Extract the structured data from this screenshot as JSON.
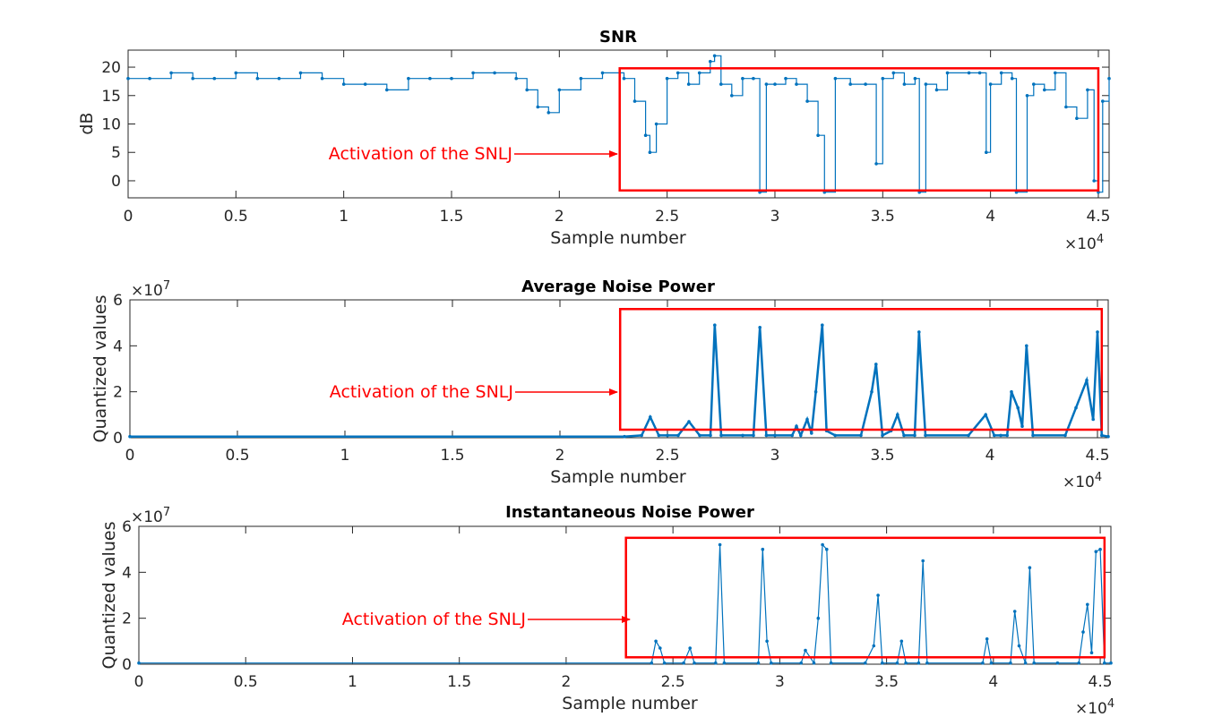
{
  "chart_data": [
    {
      "type": "line",
      "title": "SNR",
      "xlabel": "Sample number",
      "ylabel": "dB",
      "x_multiplier": "×10",
      "x_multiplier_exp": "4",
      "y_multiplier": "",
      "y_multiplier_exp": "",
      "xlim": [
        0,
        4.55
      ],
      "ylim": [
        -3,
        23
      ],
      "xticks": [
        "0",
        "0.5",
        "1",
        "1.5",
        "2",
        "2.5",
        "3",
        "3.5",
        "4",
        "4.5"
      ],
      "yticks": [
        "20",
        "15",
        "10",
        "5",
        "0"
      ],
      "ytick_values": [
        20,
        15,
        10,
        5,
        0
      ],
      "annotation": "Activation of the SNLJ",
      "highlight_region": {
        "x": [
          2.28,
          4.5
        ],
        "y": [
          -1.7,
          19.8
        ]
      },
      "series": [
        {
          "name": "SNR",
          "color": "#0072BD",
          "x": [
            0,
            0.1,
            0.2,
            0.3,
            0.4,
            0.5,
            0.6,
            0.7,
            0.8,
            0.9,
            1.0,
            1.1,
            1.2,
            1.3,
            1.4,
            1.5,
            1.6,
            1.7,
            1.8,
            1.85,
            1.9,
            1.95,
            2.0,
            2.1,
            2.2,
            2.3,
            2.35,
            2.4,
            2.42,
            2.45,
            2.5,
            2.55,
            2.6,
            2.65,
            2.7,
            2.72,
            2.75,
            2.8,
            2.85,
            2.9,
            2.93,
            2.96,
            3.0,
            3.05,
            3.1,
            3.15,
            3.2,
            3.23,
            3.28,
            3.35,
            3.42,
            3.47,
            3.5,
            3.55,
            3.6,
            3.65,
            3.67,
            3.7,
            3.75,
            3.8,
            3.9,
            3.95,
            3.98,
            4.0,
            4.05,
            4.1,
            4.12,
            4.17,
            4.2,
            4.25,
            4.3,
            4.35,
            4.4,
            4.45,
            4.48,
            4.5,
            4.52,
            4.55
          ],
          "values": [
            18,
            18,
            19,
            18,
            18,
            19,
            18,
            18,
            19,
            18,
            17,
            17,
            16,
            18,
            18,
            18,
            19,
            19,
            18,
            16,
            13,
            12,
            16,
            18,
            19,
            18,
            14,
            8,
            5,
            10,
            18,
            19,
            17,
            19,
            21,
            22,
            17,
            15,
            18,
            18,
            -2,
            17,
            17,
            18,
            17,
            14,
            8,
            -2,
            18,
            17,
            17,
            3,
            18,
            19,
            17,
            18,
            -2,
            17,
            16,
            19,
            19,
            19,
            5,
            17,
            19,
            18,
            -2,
            15,
            17,
            16,
            19,
            13,
            11,
            16,
            0,
            -2,
            14,
            18
          ]
        }
      ]
    },
    {
      "type": "line",
      "title": "Average Noise Power",
      "xlabel": "Sample number",
      "ylabel": "Quantized values",
      "x_multiplier": "×10",
      "x_multiplier_exp": "4",
      "y_multiplier": "×10",
      "y_multiplier_exp": "7",
      "xlim": [
        0,
        4.55
      ],
      "ylim": [
        0,
        6
      ],
      "xticks": [
        "0",
        "0.5",
        "1",
        "1.5",
        "2",
        "2.5",
        "3",
        "3.5",
        "4",
        "4.5"
      ],
      "yticks": [
        "6",
        "4",
        "2",
        "0"
      ],
      "ytick_values": [
        6,
        4,
        2,
        0
      ],
      "annotation": "Activation of the SNLJ",
      "highlight_region": {
        "x": [
          2.28,
          4.52
        ],
        "y": [
          0.35,
          5.6
        ]
      },
      "series": [
        {
          "name": "Average Noise Power",
          "color": "#0072BD",
          "x": [
            0,
            2.3,
            2.38,
            2.42,
            2.46,
            2.5,
            2.55,
            2.6,
            2.65,
            2.7,
            2.72,
            2.75,
            2.85,
            2.9,
            2.93,
            2.96,
            3.0,
            3.08,
            3.1,
            3.12,
            3.15,
            3.17,
            3.19,
            3.22,
            3.24,
            3.28,
            3.4,
            3.45,
            3.47,
            3.5,
            3.54,
            3.57,
            3.6,
            3.65,
            3.67,
            3.7,
            3.9,
            3.98,
            4.02,
            4.05,
            4.08,
            4.1,
            4.13,
            4.15,
            4.17,
            4.2,
            4.35,
            4.4,
            4.45,
            4.48,
            4.5,
            4.52,
            4.55
          ],
          "values": [
            0.05,
            0.05,
            0.1,
            0.9,
            0.1,
            0.1,
            0.1,
            0.7,
            0.1,
            0.1,
            4.9,
            0.1,
            0.1,
            0.1,
            4.8,
            0.1,
            0.1,
            0.1,
            0.5,
            0.1,
            0.8,
            0.2,
            2.0,
            4.9,
            0.3,
            0.1,
            0.1,
            2.0,
            3.2,
            0.1,
            0.3,
            1.0,
            0.1,
            0.1,
            4.6,
            0.1,
            0.1,
            1.0,
            0.1,
            0.1,
            0.1,
            2.0,
            1.3,
            0.5,
            4.0,
            0.1,
            0.1,
            1.3,
            2.5,
            0.8,
            4.6,
            0.1,
            0.05
          ]
        }
      ]
    },
    {
      "type": "line",
      "title": "Instantaneous Noise Power",
      "xlabel": "Sample number",
      "ylabel": "Quantized values",
      "x_multiplier": "×10",
      "x_multiplier_exp": "4",
      "y_multiplier": "×10",
      "y_multiplier_exp": "7",
      "xlim": [
        0,
        4.55
      ],
      "ylim": [
        0,
        6
      ],
      "xticks": [
        "0",
        "0.5",
        "1",
        "1.5",
        "2",
        "2.5",
        "3",
        "3.5",
        "4",
        "4.5"
      ],
      "yticks": [
        "6",
        "4",
        "2",
        "0"
      ],
      "ytick_values": [
        6,
        4,
        2,
        0
      ],
      "annotation": "Activation of the SNLJ",
      "highlight_region": {
        "x": [
          2.28,
          4.52
        ],
        "y": [
          0.3,
          5.5
        ]
      },
      "series": [
        {
          "name": "Instantaneous Noise Power",
          "color": "#0072BD",
          "x": [
            0,
            2.4,
            2.42,
            2.44,
            2.46,
            2.55,
            2.58,
            2.6,
            2.7,
            2.72,
            2.74,
            2.9,
            2.92,
            2.94,
            2.96,
            3.1,
            3.12,
            3.16,
            3.18,
            3.2,
            3.22,
            3.24,
            3.4,
            3.44,
            3.46,
            3.48,
            3.55,
            3.57,
            3.59,
            3.65,
            3.67,
            3.69,
            3.95,
            3.97,
            3.99,
            4.08,
            4.1,
            4.12,
            4.15,
            4.17,
            4.19,
            4.3,
            4.4,
            4.42,
            4.44,
            4.46,
            4.48,
            4.5,
            4.52,
            4.55
          ],
          "values": [
            0.05,
            0.05,
            1.0,
            0.7,
            0.05,
            0.05,
            0.7,
            0.05,
            0.05,
            5.2,
            0.05,
            0.05,
            5.0,
            1.0,
            0.05,
            0.05,
            0.6,
            0.05,
            2.0,
            5.2,
            5.0,
            0.05,
            0.05,
            0.8,
            3.0,
            0.05,
            0.05,
            1.0,
            0.05,
            0.05,
            4.5,
            0.05,
            0.05,
            1.1,
            0.05,
            0.05,
            2.3,
            0.8,
            0.05,
            4.2,
            0.05,
            0.05,
            0.05,
            1.4,
            2.6,
            0.5,
            4.9,
            5.0,
            0.05,
            0.05
          ]
        }
      ]
    }
  ]
}
